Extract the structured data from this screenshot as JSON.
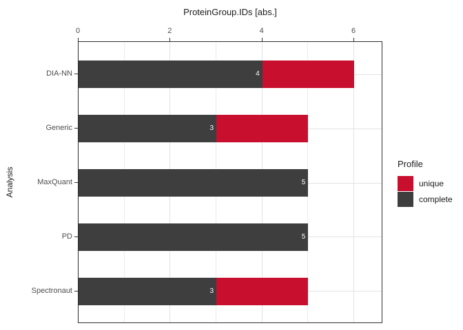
{
  "chart_data": {
    "type": "bar",
    "orientation": "horizontal",
    "stacked": true,
    "title": "ProteinGroup.IDs [abs.]",
    "ylabel": "Analysis",
    "xlabel": "",
    "categories": [
      "DIA-NN",
      "Generic",
      "MaxQuant",
      "PD",
      "Spectronaut"
    ],
    "series": [
      {
        "name": "complete",
        "color": "#3e3e3e",
        "values": [
          4,
          3,
          5,
          5,
          3
        ]
      },
      {
        "name": "unique",
        "color": "#c8102e",
        "values": [
          2,
          2,
          0,
          0,
          2
        ]
      }
    ],
    "totals": [
      6,
      5,
      5,
      5,
      5
    ],
    "bar_labels": [
      "4",
      "3",
      "5",
      "5",
      "3"
    ],
    "x_ticks": [
      0,
      2,
      4,
      6
    ],
    "x_minor_ticks": [
      1,
      3,
      5
    ],
    "xlim": [
      0,
      6.63
    ],
    "x_axis_position": "top",
    "grid": true,
    "legend": {
      "title": "Profile",
      "position": "right",
      "entries": [
        {
          "label": "unique",
          "color": "#c8102e"
        },
        {
          "label": "complete",
          "color": "#3e3e3e"
        }
      ]
    }
  }
}
